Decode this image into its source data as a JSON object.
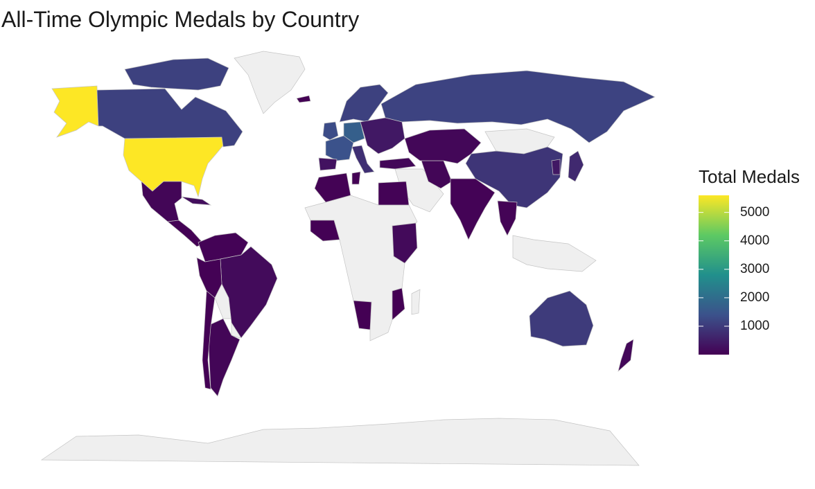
{
  "title": "All-Time Olympic Medals by Country",
  "legend": {
    "title": "Total Medals",
    "min": 1,
    "max": 5600,
    "ticks": [
      1000,
      2000,
      3000,
      4000,
      5000
    ],
    "tick_labels": [
      "1000",
      "2000",
      "3000",
      "4000",
      "5000"
    ]
  },
  "colors": {
    "no_data": "#efefef",
    "border": "#c4c4c4",
    "scale": [
      "#440154",
      "#3b528b",
      "#21908c",
      "#5dc963",
      "#fde725"
    ]
  },
  "map_data": {
    "type": "choropleth",
    "value_label": "Total Medals",
    "regions": [
      {
        "name": "USA",
        "value": 5600
      },
      {
        "name": "Alaska",
        "value": 5600
      },
      {
        "name": "Canada",
        "value": 1100
      },
      {
        "name": "Canadian Arctic Islands",
        "value": 1100
      },
      {
        "name": "Greenland",
        "value": null
      },
      {
        "name": "Mexico",
        "value": 80
      },
      {
        "name": "Central America",
        "value": 20
      },
      {
        "name": "Cuba",
        "value": 230
      },
      {
        "name": "Colombia / Venezuela",
        "value": 40
      },
      {
        "name": "Brazil",
        "value": 170
      },
      {
        "name": "Peru",
        "value": 20
      },
      {
        "name": "Bolivia",
        "value": null
      },
      {
        "name": "Paraguay",
        "value": null
      },
      {
        "name": "Argentina",
        "value": 80
      },
      {
        "name": "Chile",
        "value": 20
      },
      {
        "name": "Russia",
        "value": 1150
      },
      {
        "name": "Scandinavia",
        "value": 1100
      },
      {
        "name": "Iceland",
        "value": 10
      },
      {
        "name": "Great Britain",
        "value": 1300
      },
      {
        "name": "France",
        "value": 1400
      },
      {
        "name": "Germany",
        "value": 1700
      },
      {
        "name": "Italy",
        "value": 800
      },
      {
        "name": "Spain",
        "value": 300
      },
      {
        "name": "Eastern Europe",
        "value": 400
      },
      {
        "name": "Turkey",
        "value": 100
      },
      {
        "name": "Middle East",
        "value": null
      },
      {
        "name": "Iran",
        "value": 80
      },
      {
        "name": "Kazakhstan / Central Asia",
        "value": 100
      },
      {
        "name": "Mongolia",
        "value": null
      },
      {
        "name": "China",
        "value": 900
      },
      {
        "name": "India",
        "value": 40
      },
      {
        "name": "Japan",
        "value": 700
      },
      {
        "name": "Korea",
        "value": 400
      },
      {
        "name": "Thailand / Southeast Asia",
        "value": 60
      },
      {
        "name": "Indonesia / Philippines",
        "value": null
      },
      {
        "name": "Egypt",
        "value": 40
      },
      {
        "name": "Morocco / Algeria",
        "value": 30
      },
      {
        "name": "Tunisia",
        "value": 15
      },
      {
        "name": "West Africa",
        "value": 20
      },
      {
        "name": "Kenya / Ethiopia",
        "value": 150
      },
      {
        "name": "Namibia",
        "value": 5
      },
      {
        "name": "Mozambique",
        "value": 5
      },
      {
        "name": "Rest of Africa",
        "value": null
      },
      {
        "name": "Madagascar",
        "value": null
      },
      {
        "name": "Australia",
        "value": 1000
      },
      {
        "name": "New Zealand",
        "value": 120
      },
      {
        "name": "Antarctica",
        "value": null
      }
    ]
  }
}
